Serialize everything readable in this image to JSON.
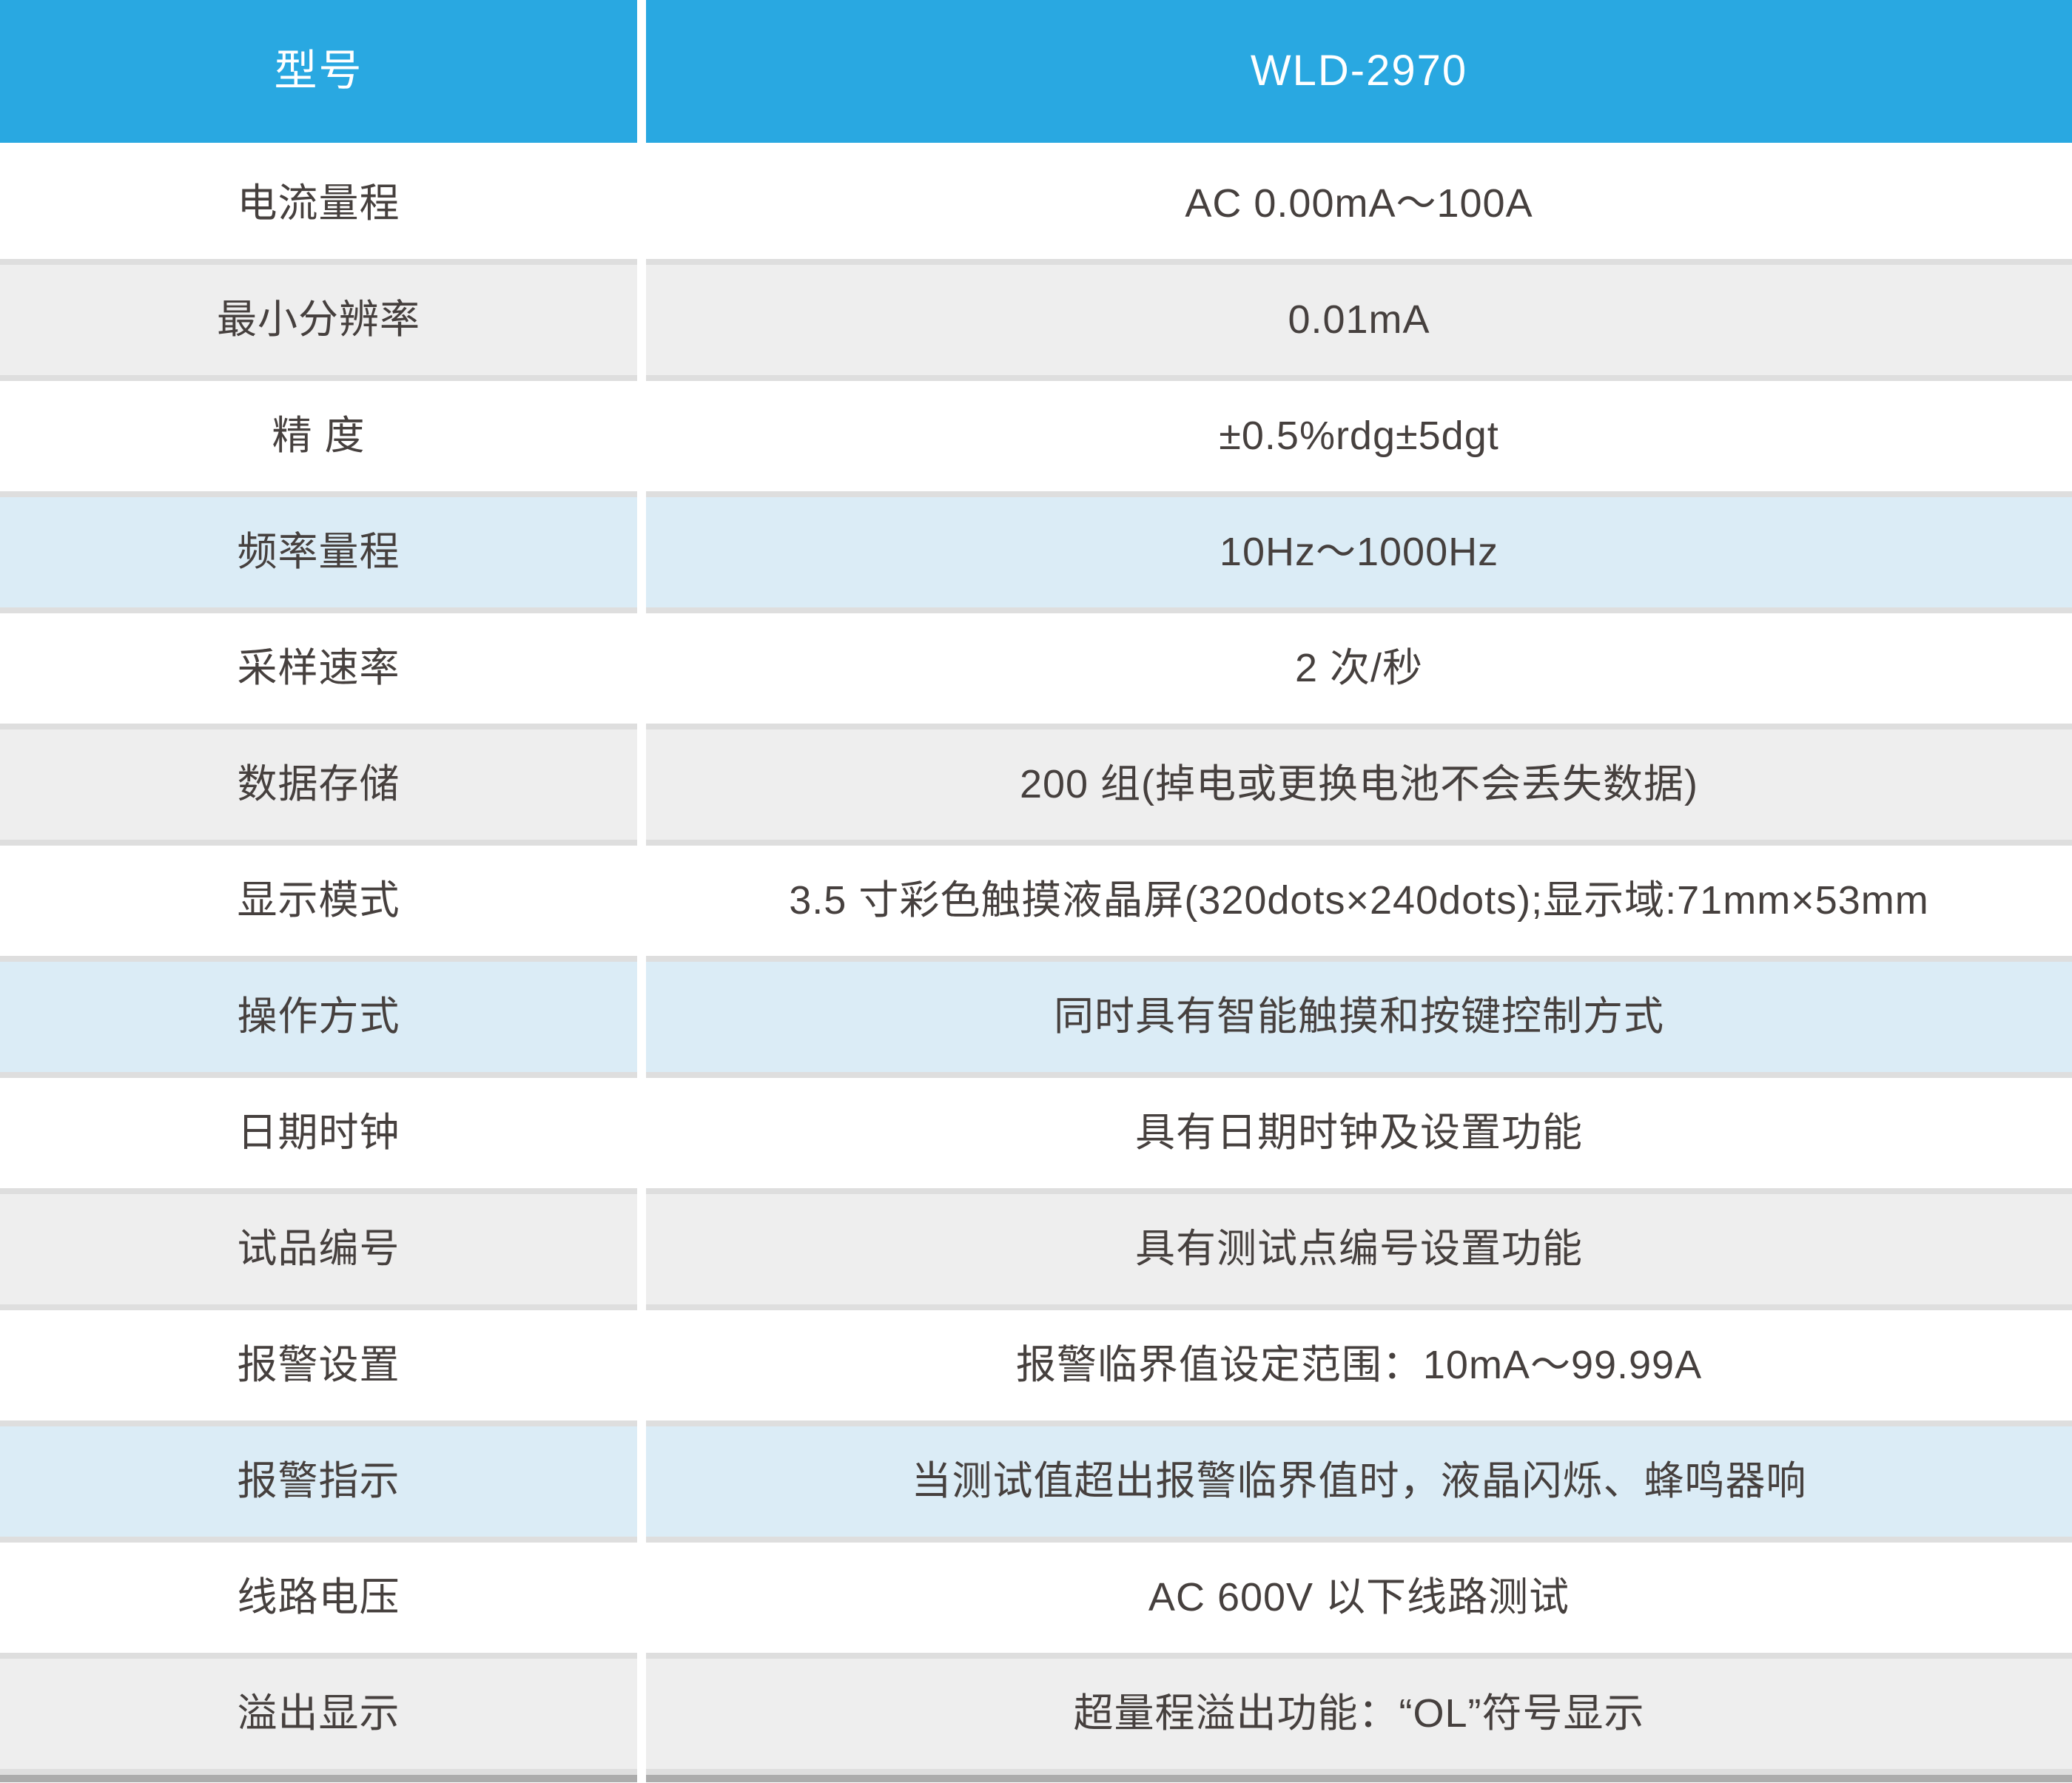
{
  "table": {
    "header": {
      "model_label": "型号",
      "model_value": "WLD-2970"
    },
    "rows": [
      {
        "label": "电流量程",
        "value": "AC 0.00mA～100A",
        "tone": "white"
      },
      {
        "label": "最小分辨率",
        "value": "0.01mA",
        "tone": "gray"
      },
      {
        "label": "精 度",
        "value": "±0.5%rdg±5dgt",
        "tone": "white"
      },
      {
        "label": "频率量程",
        "value": "10Hz～1000Hz",
        "tone": "blue"
      },
      {
        "label": "采样速率",
        "value": "2 次/秒",
        "tone": "white"
      },
      {
        "label": "数据存储",
        "value": "200 组(掉电或更换电池不会丢失数据)",
        "tone": "gray"
      },
      {
        "label": "显示模式",
        "value": "3.5 寸彩色触摸液晶屏(320dots×240dots);显示域:71mm×53mm",
        "tone": "white"
      },
      {
        "label": "操作方式",
        "value": "同时具有智能触摸和按键控制方式",
        "tone": "blue"
      },
      {
        "label": "日期时钟",
        "value": "具有日期时钟及设置功能",
        "tone": "white"
      },
      {
        "label": "试品编号",
        "value": "具有测试点编号设置功能",
        "tone": "gray"
      },
      {
        "label": "报警设置",
        "value": "报警临界值设定范围：10mA～99.99A",
        "tone": "white"
      },
      {
        "label": "报警指示",
        "value": "当测试值超出报警临界值时，液晶闪烁、蜂鸣器响",
        "tone": "blue"
      },
      {
        "label": "线路电压",
        "value": "AC 600V 以下线路测试",
        "tone": "white"
      },
      {
        "label": "溢出显示",
        "value": "超量程溢出功能：“OL”符号显示",
        "tone": "gray"
      }
    ],
    "colors": {
      "header_bg": "#29A8E1",
      "header_text": "#FFFFFF",
      "row_white": "#FFFFFF",
      "row_gray": "#EEEEEE",
      "row_blue": "#DBECF6",
      "divider": "#DEDEDE",
      "footer_bar": "#ACACAC",
      "body_text": "#46403E"
    }
  }
}
